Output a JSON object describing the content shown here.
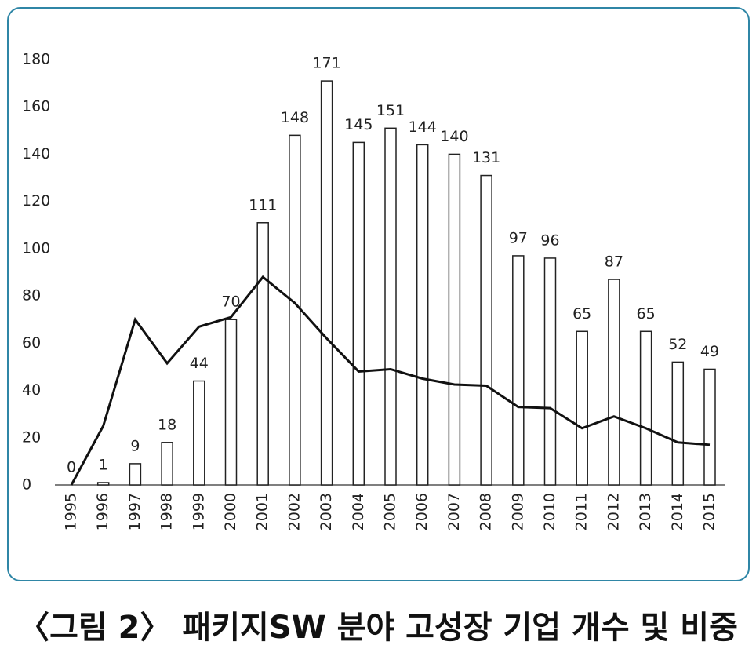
{
  "chart_data": {
    "type": "bar",
    "caption": "〈그림 2〉 패키지SW 분야 고성장 기업 개수 및 비중",
    "categories": [
      "1995",
      "1996",
      "1997",
      "1998",
      "1999",
      "2000",
      "2001",
      "2002",
      "2003",
      "2004",
      "2005",
      "2006",
      "2007",
      "2008",
      "2009",
      "2010",
      "2011",
      "2012",
      "2013",
      "2014",
      "2015"
    ],
    "series": [
      {
        "type": "bar",
        "color": "#222222",
        "values": [
          0,
          1,
          9,
          18,
          44,
          70,
          111,
          148,
          171,
          145,
          151,
          144,
          140,
          131,
          97,
          96,
          65,
          87,
          65,
          52,
          49
        ]
      },
      {
        "type": "line",
        "color": "#111111",
        "values": [
          0,
          25,
          70,
          51.5,
          67,
          71,
          88,
          77,
          62,
          48,
          49,
          45,
          42.5,
          42,
          33,
          32.5,
          24,
          29,
          24,
          18,
          17
        ]
      }
    ],
    "ylim": [
      0,
      180
    ],
    "yticks": [
      0,
      20,
      40,
      60,
      80,
      100,
      120,
      140,
      160,
      180
    ]
  }
}
